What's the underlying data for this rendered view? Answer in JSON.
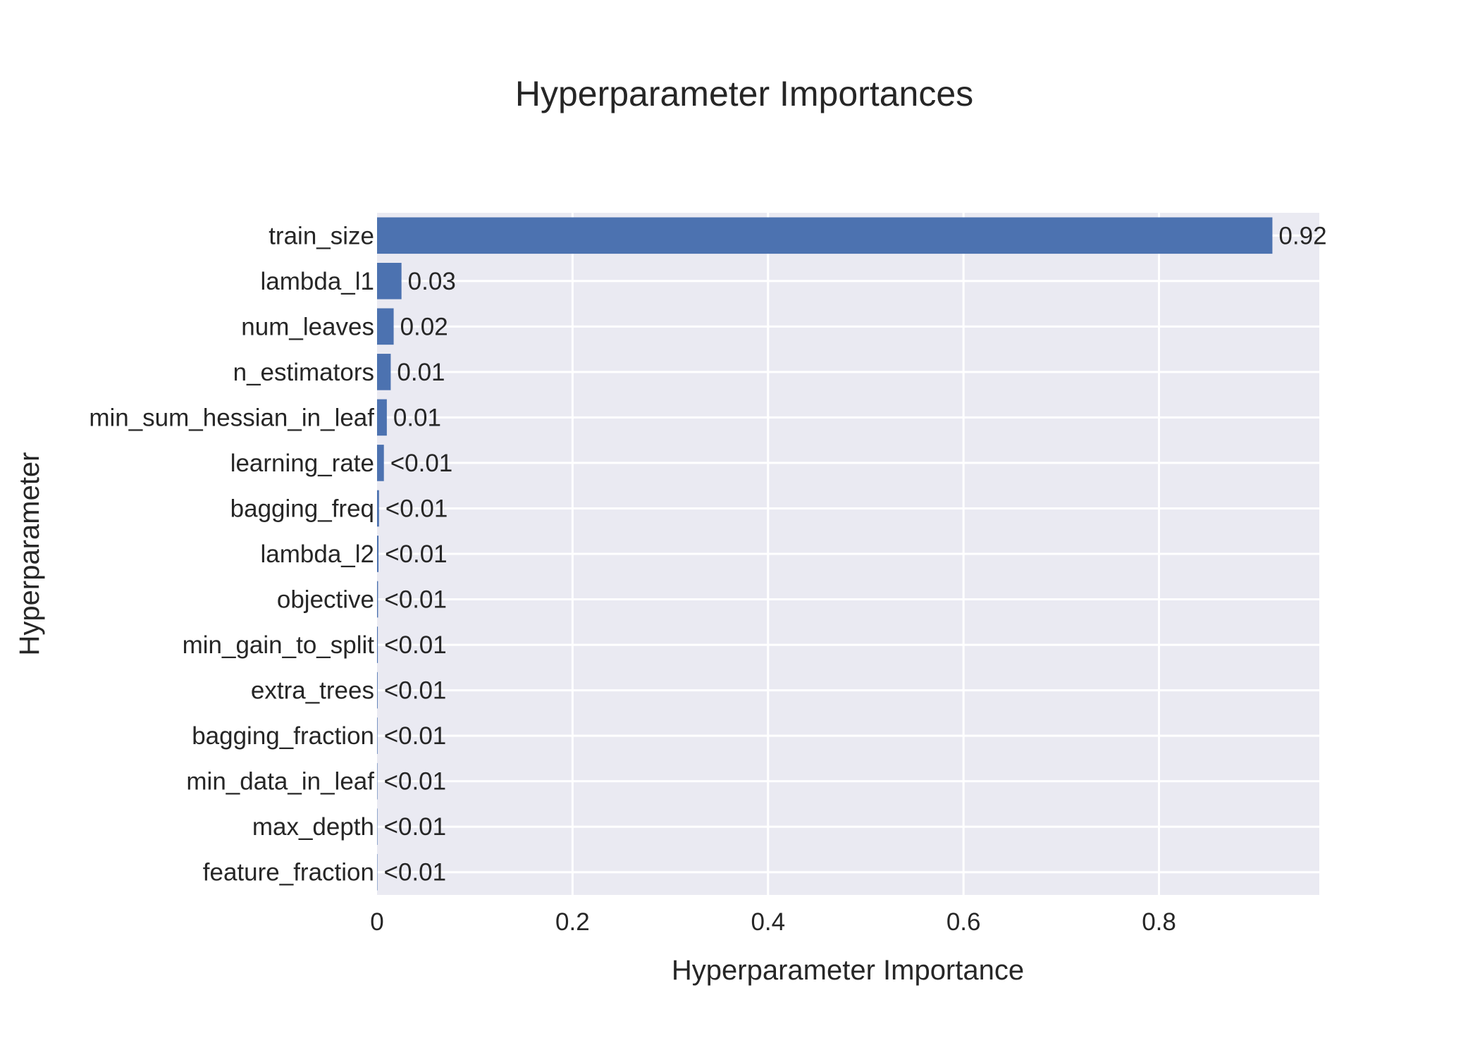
{
  "chart_data": {
    "type": "bar",
    "orientation": "horizontal",
    "title": "Hyperparameter Importances",
    "xlabel": "Hyperparameter Importance",
    "ylabel": "Hyperparameter",
    "xlim": [
      0,
      0.964
    ],
    "xticks": [
      0,
      0.2,
      0.4,
      0.6,
      0.8
    ],
    "xtick_labels": [
      "0",
      "0.2",
      "0.4",
      "0.6",
      "0.8"
    ],
    "grid": true,
    "legend": "none",
    "colors": {
      "bar": "#4C72B0",
      "plot_bg": "#EAEAF2",
      "grid": "#FFFFFF",
      "text": "#262626"
    },
    "categories": [
      "train_size",
      "lambda_l1",
      "num_leaves",
      "n_estimators",
      "min_sum_hessian_in_leaf",
      "learning_rate",
      "bagging_freq",
      "lambda_l2",
      "objective",
      "min_gain_to_split",
      "extra_trees",
      "bagging_fraction",
      "min_data_in_leaf",
      "max_depth",
      "feature_fraction"
    ],
    "values": [
      0.916,
      0.025,
      0.017,
      0.014,
      0.01,
      0.007,
      0.002,
      0.0015,
      0.001,
      0.0008,
      0.0006,
      0.0005,
      0.0004,
      0.0004,
      0.0003
    ],
    "data_labels": [
      "0.92",
      "0.03",
      "0.02",
      "0.01",
      "0.01",
      "<0.01",
      "<0.01",
      "<0.01",
      "<0.01",
      "<0.01",
      "<0.01",
      "<0.01",
      "<0.01",
      "<0.01",
      "<0.01"
    ]
  }
}
